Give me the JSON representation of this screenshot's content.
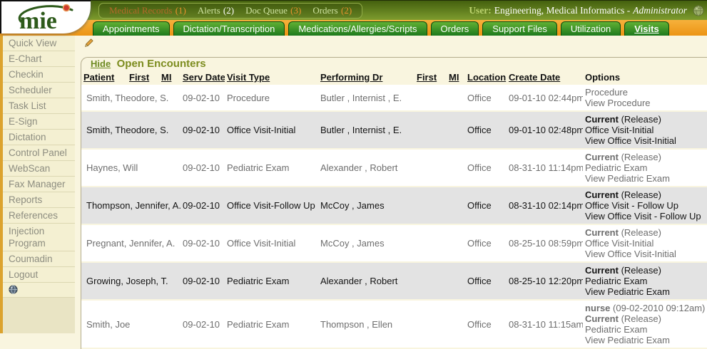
{
  "colors": {
    "topbar_green_dark": "#44600e",
    "topbar_green_light": "#7d9c2e",
    "tab_green": "#1d7a1d",
    "tab_row_orange": "#ef9c20",
    "content_cream": "#f9f5df",
    "row_alt_gray": "#e3e3e3",
    "accent_orange": "#dca32e",
    "title_olive": "#7c8c1e"
  },
  "header": {
    "logo_text": "mie",
    "nav_items": [
      {
        "label": "Medical Records",
        "count": "(1)",
        "label_color": "#b4692a",
        "count_color": "#e8922e"
      },
      {
        "label": "Alerts",
        "count": "(2)",
        "label_color": "#cfe3a0",
        "count_color": "#ffffff"
      },
      {
        "label": "Doc Queue",
        "count": "(3)",
        "label_color": "#cfe3a0",
        "count_color": "#e8922e"
      },
      {
        "label": "Orders",
        "count": "(2)",
        "label_color": "#cfe3a0",
        "count_color": "#e8922e"
      }
    ],
    "user_label": "User:",
    "user_name": "Engineering, Medical Informatics -",
    "user_role": "Administrator",
    "globe_icon": "globe-icon"
  },
  "tabs": [
    {
      "label": "Appointments",
      "active": false
    },
    {
      "label": "Dictation/Transcription",
      "active": false
    },
    {
      "label": "Medications/Allergies/Scripts",
      "active": false
    },
    {
      "label": "Orders",
      "active": false
    },
    {
      "label": "Support Files",
      "active": false
    },
    {
      "label": "Utilization",
      "active": false
    },
    {
      "label": "Visits",
      "active": true
    }
  ],
  "sidebar": {
    "items": [
      "Quick View",
      "E-Chart",
      "Checkin",
      "Scheduler",
      "Task List",
      "E-Sign",
      "Dictation",
      "Control Panel",
      "WebScan",
      "Fax Manager",
      "Reports",
      "References",
      "Injection Program",
      "Coumadin",
      "Logout"
    ],
    "footer_icon": "globe-icon"
  },
  "main": {
    "edit_icon": "pencil-icon",
    "hide_link": "Hide",
    "panel_title": "Open Encounters",
    "table": {
      "headers": [
        {
          "label": "Patient",
          "underline": true
        },
        {
          "label": "First",
          "underline": true
        },
        {
          "label": "MI",
          "underline": true
        },
        {
          "label": "Serv Date",
          "underline": true
        },
        {
          "label": "Visit Type",
          "underline": true
        },
        {
          "label": "Performing Dr",
          "underline": true
        },
        {
          "label": "First",
          "underline": true
        },
        {
          "label": "MI",
          "underline": true
        },
        {
          "label": "Location",
          "underline": true
        },
        {
          "label": "Create Date",
          "underline": true
        },
        {
          "label": "Options",
          "underline": false
        }
      ],
      "rows": [
        {
          "patient": "Smith, Theodore, S.",
          "serv_date": "09-02-10",
          "visit_type": "Procedure",
          "performing_dr": "Butler , Internist , E.",
          "location": "Office",
          "create_date": "09-01-10 02:44pm",
          "options": [
            {
              "bold": "",
              "text": "Procedure"
            },
            {
              "bold": "",
              "text": "View Procedure"
            }
          ]
        },
        {
          "patient": "Smith, Theodore, S.",
          "serv_date": "09-02-10",
          "visit_type": "Office Visit-Initial",
          "performing_dr": "Butler , Internist , E.",
          "location": "Office",
          "create_date": "09-01-10 02:48pm",
          "options": [
            {
              "bold": "Current",
              "text": "(Release)"
            },
            {
              "bold": "",
              "text": "Office Visit-Initial"
            },
            {
              "bold": "",
              "text": "View Office Visit-Initial"
            }
          ]
        },
        {
          "patient": "Haynes, Will",
          "serv_date": "09-02-10",
          "visit_type": "Pediatric Exam",
          "performing_dr": "Alexander , Robert",
          "location": "Office",
          "create_date": "08-31-10 11:14pm",
          "options": [
            {
              "bold": "Current",
              "text": "(Release)"
            },
            {
              "bold": "",
              "text": "Pediatric Exam"
            },
            {
              "bold": "",
              "text": "View Pediatric Exam"
            }
          ]
        },
        {
          "patient": "Thompson, Jennifer, A.",
          "serv_date": "09-02-10",
          "visit_type": "Office Visit-Follow Up",
          "performing_dr": "McCoy , James",
          "location": "Office",
          "create_date": "08-31-10 02:14pm",
          "options": [
            {
              "bold": "Current",
              "text": "(Release)"
            },
            {
              "bold": "",
              "text": "Office Visit - Follow Up"
            },
            {
              "bold": "",
              "text": "View Office Visit - Follow Up"
            }
          ]
        },
        {
          "patient": "Pregnant, Jennifer, A.",
          "serv_date": "09-02-10",
          "visit_type": "Office Visit-Initial",
          "performing_dr": "McCoy , James",
          "location": "Office",
          "create_date": "08-25-10 08:59pm",
          "options": [
            {
              "bold": "Current",
              "text": "(Release)"
            },
            {
              "bold": "",
              "text": "Office Visit-Initial"
            },
            {
              "bold": "",
              "text": "View Office Visit-Initial"
            }
          ]
        },
        {
          "patient": "Growing, Joseph, T.",
          "serv_date": "09-02-10",
          "visit_type": "Pediatric Exam",
          "performing_dr": "Alexander , Robert",
          "location": "Office",
          "create_date": "08-25-10 12:20pm",
          "options": [
            {
              "bold": "Current",
              "text": "(Release)"
            },
            {
              "bold": "",
              "text": "Pediatric Exam"
            },
            {
              "bold": "",
              "text": "View Pediatric Exam"
            }
          ]
        },
        {
          "patient": "Smith, Joe",
          "serv_date": "09-02-10",
          "visit_type": "Pediatric Exam",
          "performing_dr": "Thompson , Ellen",
          "location": "Office",
          "create_date": "08-31-10 11:15am",
          "options": [
            {
              "bold": "nurse",
              "text": "(09-02-2010 09:12am)"
            },
            {
              "bold": "Current",
              "text": "(Release)"
            },
            {
              "bold": "",
              "text": "Pediatric Exam"
            },
            {
              "bold": "",
              "text": "View Pediatric Exam"
            }
          ]
        }
      ]
    }
  }
}
